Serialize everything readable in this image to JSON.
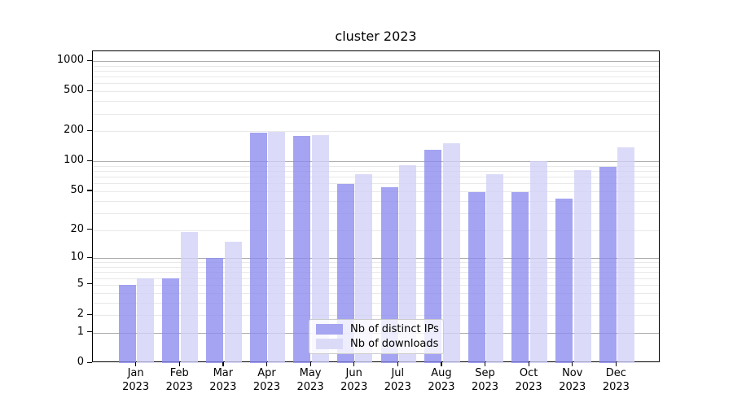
{
  "figure": {
    "background": "#ffffff",
    "text_color": "#000000",
    "gridline_major_color": "#aeaeae",
    "gridline_minor_color": "#e9e9e9"
  },
  "chart_data": {
    "type": "bar",
    "title": "cluster 2023",
    "categories": [
      "Jan\n2023",
      "Feb\n2023",
      "Mar\n2023",
      "Apr\n2023",
      "May\n2023",
      "Jun\n2023",
      "Jul\n2023",
      "Aug\n2023",
      "Sep\n2023",
      "Oct\n2023",
      "Nov\n2023",
      "Dec\n2023"
    ],
    "series": [
      {
        "name": "Nb of distinct IPs",
        "color": "rgba(138,138,238,0.78)",
        "legend_color": "#a5a5f1",
        "values": [
          5,
          6,
          10,
          192,
          179,
          59,
          55,
          130,
          49,
          49,
          42,
          88
        ]
      },
      {
        "name": "Nb of downloads",
        "color": "rgba(209,209,247,0.78)",
        "legend_color": "#dbdbf8",
        "values": [
          6,
          19,
          15,
          197,
          183,
          74,
          92,
          151,
          74,
          101,
          81,
          137
        ]
      }
    ],
    "xlabel": "",
    "ylabel": "",
    "yscale": "log1p",
    "ylim": [
      0,
      1250
    ],
    "yticks": [
      0,
      1,
      2,
      5,
      10,
      20,
      50,
      100,
      200,
      500,
      1000
    ],
    "grid_major": [
      1,
      10,
      100,
      1000
    ],
    "grid_minor": [
      2,
      3,
      4,
      5,
      6,
      7,
      8,
      9,
      20,
      30,
      40,
      50,
      60,
      70,
      80,
      90,
      200,
      300,
      400,
      500,
      600,
      700,
      800,
      900
    ],
    "grid": "on",
    "legend_position": "lower center"
  }
}
